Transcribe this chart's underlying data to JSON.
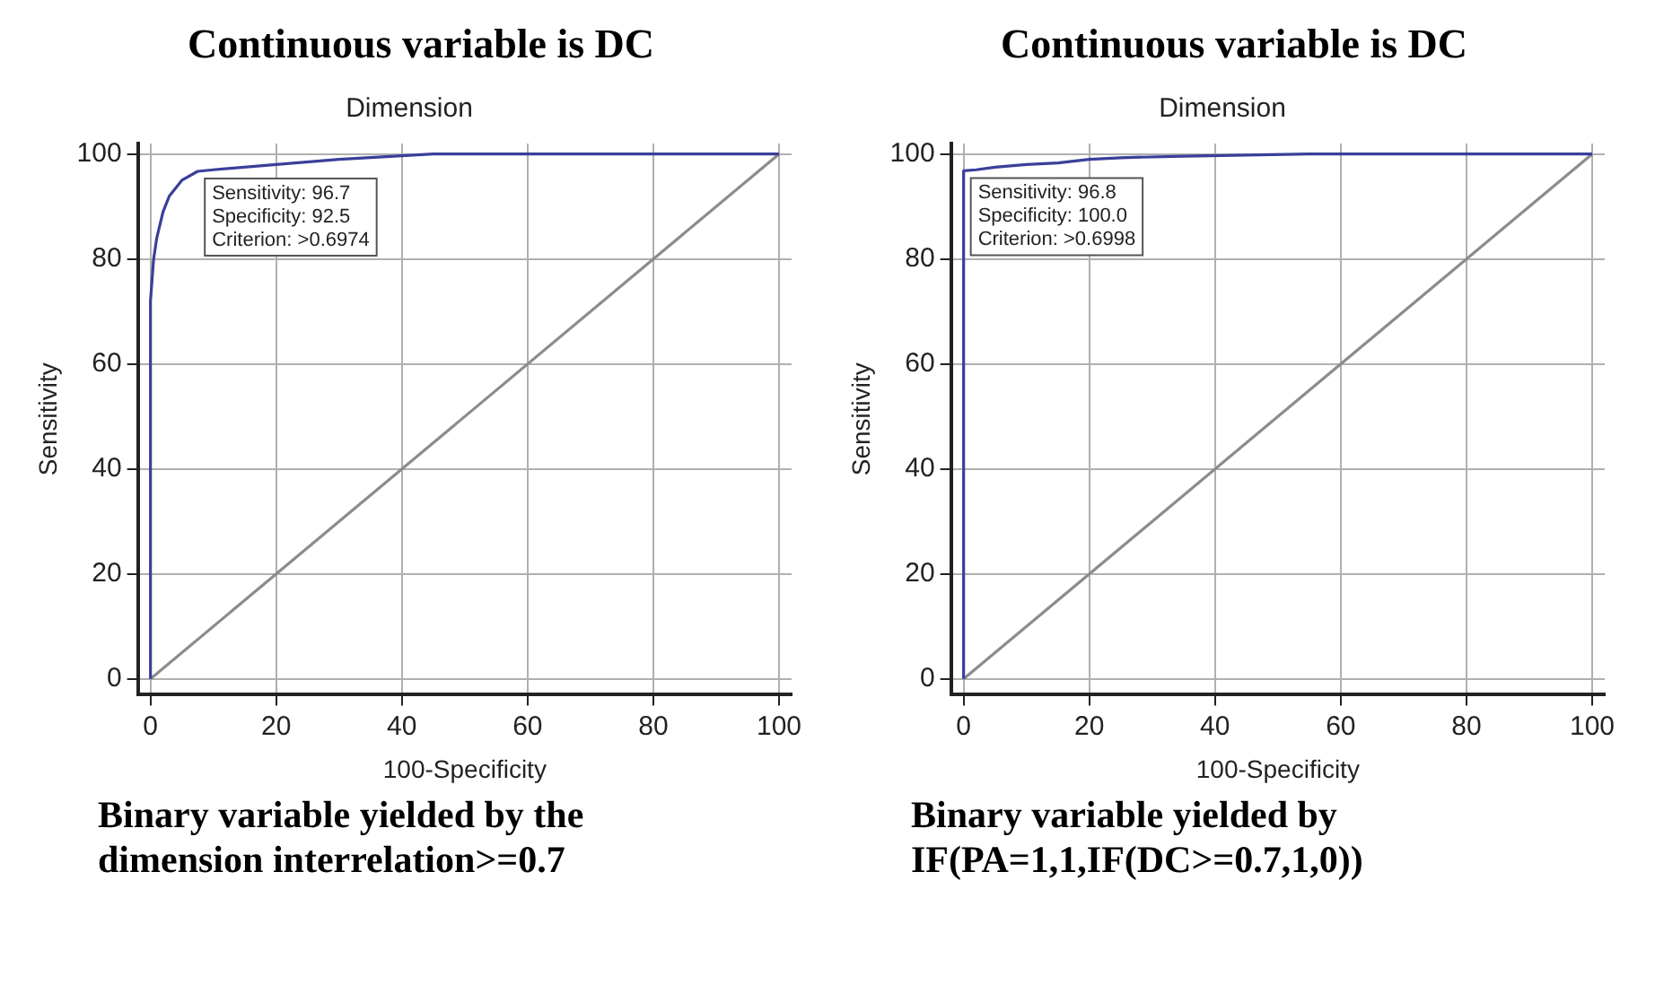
{
  "chart_data": [
    {
      "type": "line",
      "title": "Continuous variable is DC",
      "subtitle": "Dimension",
      "xlabel": "100-Specificity",
      "ylabel": "Sensitivity",
      "series": [
        {
          "color": "#3a3f9a",
          "x": [
            0,
            0,
            0.5,
            1,
            2,
            3,
            5,
            7.5,
            10,
            20,
            30,
            45,
            100
          ],
          "values": [
            0,
            72,
            80,
            84,
            89,
            92,
            95,
            96.7,
            97,
            98,
            99,
            100,
            100
          ]
        },
        {
          "color": "#8c8c8c",
          "x": [
            0,
            100
          ],
          "values": [
            0,
            100
          ]
        }
      ],
      "xlim": [
        -2,
        102
      ],
      "ylim": [
        -3,
        102
      ],
      "xticks": [
        0,
        20,
        40,
        60,
        80,
        100
      ],
      "yticks": [
        0,
        20,
        40,
        60,
        80,
        100
      ],
      "grid": true,
      "legend": false,
      "marker": "none",
      "line_style": "solid",
      "annotations": [
        {
          "text": "Sensitivity: 96.7\nSpecificity: 92.5\nCriterion: >0.6974",
          "x": 7.5,
          "y": 96.7
        },
        "Binary variable yielded by the dimension interrelation>=0.7"
      ]
    },
    {
      "type": "line",
      "title": "Continuous variable is DC",
      "subtitle": "Dimension",
      "xlabel": "100-Specificity",
      "ylabel": "Sensitivity",
      "series": [
        {
          "color": "#3a3f9a",
          "x": [
            0,
            0,
            2,
            5,
            10,
            15,
            20,
            25,
            35,
            55,
            100
          ],
          "values": [
            0,
            96.8,
            97,
            97.5,
            98,
            98.3,
            99,
            99.3,
            99.6,
            100,
            100
          ]
        },
        {
          "color": "#8c8c8c",
          "x": [
            0,
            100
          ],
          "values": [
            0,
            100
          ]
        }
      ],
      "xlim": [
        -2,
        102
      ],
      "ylim": [
        -3,
        102
      ],
      "xticks": [
        0,
        20,
        40,
        60,
        80,
        100
      ],
      "yticks": [
        0,
        20,
        40,
        60,
        80,
        100
      ],
      "grid": true,
      "legend": false,
      "marker": "none",
      "line_style": "solid",
      "annotations": [
        {
          "text": "Sensitivity: 96.8\nSpecificity: 100.0\nCriterion: >0.6998",
          "x": 0,
          "y": 96.8
        },
        "Binary variable yielded by IF(PA=1,1,IF(DC>=0.7,1,0))"
      ]
    }
  ]
}
